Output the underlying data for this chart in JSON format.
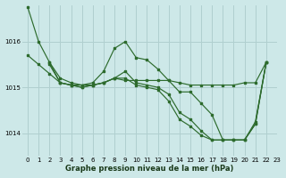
{
  "title": "Graphe pression niveau de la mer (hPa)",
  "bg_color": "#cde8e8",
  "grid_color": "#b0cfcf",
  "line_color": "#2d6b2d",
  "ylim": [
    1013.5,
    1016.8
  ],
  "xlim": [
    -0.5,
    23
  ],
  "yticks": [
    1014,
    1015,
    1016
  ],
  "xticks": [
    0,
    1,
    2,
    3,
    4,
    5,
    6,
    7,
    8,
    9,
    10,
    11,
    12,
    13,
    14,
    15,
    16,
    17,
    18,
    19,
    20,
    21,
    22,
    23
  ],
  "series": [
    {
      "x": [
        0,
        1,
        2,
        3,
        4,
        5,
        6,
        7,
        8,
        9,
        10,
        11,
        12,
        13,
        14,
        15,
        16,
        17,
        18,
        19,
        20,
        21,
        22
      ],
      "y": [
        1016.75,
        1016.0,
        1015.55,
        1015.2,
        1015.1,
        1015.05,
        1015.1,
        1015.35,
        1015.85,
        1016.0,
        1015.65,
        1015.6,
        1015.4,
        1015.15,
        1014.9,
        1014.9,
        1014.65,
        1014.4,
        1013.85,
        1013.85,
        1013.85,
        1014.25,
        1015.55
      ]
    },
    {
      "x": [
        0,
        1,
        2,
        3,
        4,
        5,
        6,
        7,
        8,
        9,
        10,
        11,
        12,
        13,
        14,
        15,
        16,
        17,
        18,
        19,
        20,
        21,
        22
      ],
      "y": [
        1015.7,
        1015.5,
        1015.3,
        1015.1,
        1015.05,
        1015.05,
        1015.05,
        1015.1,
        1015.2,
        1015.15,
        1015.15,
        1015.15,
        1015.15,
        1015.15,
        1015.1,
        1015.05,
        1015.05,
        1015.05,
        1015.05,
        1015.05,
        1015.1,
        1015.1,
        1015.55
      ]
    },
    {
      "x": [
        2,
        3,
        4,
        5,
        6,
        7,
        8,
        9,
        10,
        11,
        12,
        13,
        14,
        15,
        16,
        17,
        18,
        19,
        20,
        21,
        22
      ],
      "y": [
        1015.55,
        1015.1,
        1015.05,
        1015.0,
        1015.05,
        1015.1,
        1015.2,
        1015.35,
        1015.1,
        1015.05,
        1015.0,
        1014.85,
        1014.45,
        1014.3,
        1014.05,
        1013.85,
        1013.85,
        1013.85,
        1013.85,
        1014.2,
        1015.55
      ]
    },
    {
      "x": [
        2,
        3,
        4,
        5,
        6,
        7,
        8,
        9,
        10,
        11,
        12,
        13,
        14,
        15,
        16,
        17,
        18,
        19,
        20,
        21,
        22
      ],
      "y": [
        1015.5,
        1015.1,
        1015.05,
        1015.0,
        1015.05,
        1015.1,
        1015.2,
        1015.2,
        1015.05,
        1015.0,
        1014.95,
        1014.7,
        1014.3,
        1014.15,
        1013.95,
        1013.85,
        1013.85,
        1013.85,
        1013.85,
        1014.2,
        1015.55
      ]
    }
  ]
}
